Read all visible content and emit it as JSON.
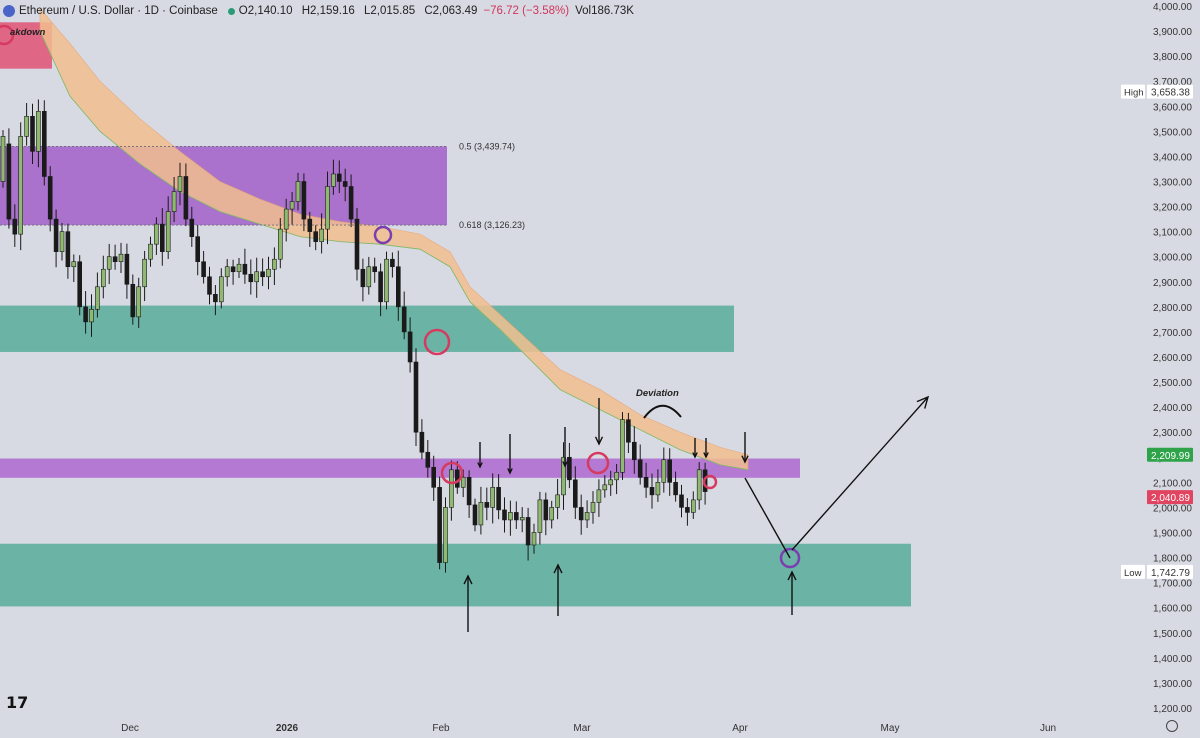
{
  "header": {
    "title": "Ethereum / U.S. Dollar · 1D · Coinbase",
    "open": "O2,140.10",
    "high": "H2,159.16",
    "low": "L2,015.85",
    "close": "C2,063.49",
    "change": "−76.72 (−3.58%)",
    "volume": "Vol186.73K"
  },
  "branding": {
    "logo_text": "17"
  },
  "chart_data": {
    "type": "candlestick",
    "ylim": [
      1115,
      4010
    ],
    "yticks": [
      1200,
      1300,
      1400,
      1500,
      1600,
      1700,
      1800,
      1900,
      2000,
      2100,
      2200,
      2300,
      2400,
      2500,
      2600,
      2700,
      2800,
      2900,
      3000,
      3100,
      3200,
      3300,
      3400,
      3500,
      3600,
      3700,
      3800,
      3900,
      4000
    ],
    "xticks": [
      {
        "label": "Dec",
        "bold": false
      },
      {
        "label": "2026",
        "bold": true
      },
      {
        "label": "Feb",
        "bold": false
      },
      {
        "label": "Mar",
        "bold": false
      },
      {
        "label": "Apr",
        "bold": false
      },
      {
        "label": "May",
        "bold": false
      },
      {
        "label": "Jun",
        "bold": false
      }
    ],
    "price_labels": [
      {
        "tag": "High",
        "value": "3,658.38",
        "y": 3658.38,
        "color": "#ffffff",
        "text_color": "#333333"
      },
      {
        "tag": "",
        "value": "2,209.99",
        "y": 2209.99,
        "color": "#2ea34a",
        "text_color": "#ffffff"
      },
      {
        "tag": "",
        "value": "2,040.89",
        "y": 2040.89,
        "color": "#e04460",
        "text_color": "#ffffff"
      },
      {
        "tag": "Low",
        "value": "1,742.79",
        "y": 1742.79,
        "color": "#ffffff",
        "text_color": "#333333"
      }
    ],
    "fib_levels": [
      {
        "label": "0.5 (3,439.74)",
        "value": 3439.74
      },
      {
        "label": "0.618 (3,126.23)",
        "value": 3126.23
      }
    ],
    "annotations": {
      "breakdown": "akdown",
      "deviation": "Deviation"
    },
    "zones": [
      {
        "color": "#e05a7a",
        "from": 3750,
        "to": 3935
      },
      {
        "color": "#a566c9",
        "from": 3126,
        "to": 3440
      },
      {
        "color": "#5fae9d",
        "from": 2620,
        "to": 2805
      },
      {
        "color": "#b06fd0",
        "from": 2118,
        "to": 2195
      },
      {
        "color": "#5fae9d",
        "from": 1605,
        "to": 1855
      }
    ],
    "colors": {
      "background": "#d8dae3",
      "candle_up": "#8fb870",
      "candle_down": "#1a1a1a",
      "cloud": "#f2bf8f",
      "circle_red": "#d63a60",
      "circle_purple": "#7b3db0"
    }
  }
}
